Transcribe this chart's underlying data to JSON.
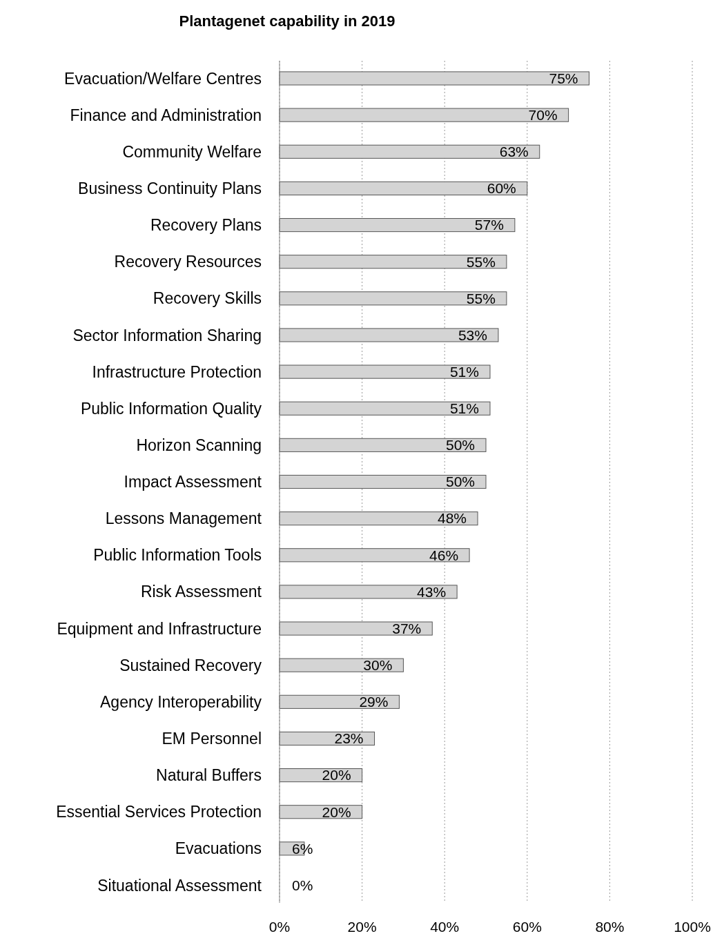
{
  "chart_data": {
    "type": "bar",
    "orientation": "horizontal",
    "title": "Plantagenet capability in 2019",
    "categories": [
      "Evacuation/Welfare Centres",
      "Finance and Administration",
      "Community Welfare",
      "Business Continuity Plans",
      "Recovery Plans",
      "Recovery Resources",
      "Recovery Skills",
      "Sector Information Sharing",
      "Infrastructure Protection",
      "Public Information Quality",
      "Horizon Scanning",
      "Impact Assessment",
      "Lessons Management",
      "Public Information Tools",
      "Risk Assessment",
      "Equipment and Infrastructure",
      "Sustained Recovery",
      "Agency Interoperability",
      "EM Personnel",
      "Natural Buffers",
      "Essential Services Protection",
      "Evacuations",
      "Situational Assessment"
    ],
    "values": [
      75,
      70,
      63,
      60,
      57,
      55,
      55,
      53,
      51,
      51,
      50,
      50,
      48,
      46,
      43,
      37,
      30,
      29,
      23,
      20,
      20,
      6,
      0
    ],
    "value_labels": [
      "75%",
      "70%",
      "63%",
      "60%",
      "57%",
      "55%",
      "55%",
      "53%",
      "51%",
      "51%",
      "50%",
      "50%",
      "48%",
      "46%",
      "43%",
      "37%",
      "30%",
      "29%",
      "23%",
      "20%",
      "20%",
      "6%",
      "0%"
    ],
    "color": "#d4d4d4",
    "xlim": [
      0,
      100
    ],
    "xticks": [
      {
        "value": 0,
        "label": "0%"
      },
      {
        "value": 20,
        "label": "20%"
      },
      {
        "value": 40,
        "label": "40%"
      },
      {
        "value": 60,
        "label": "60%"
      },
      {
        "value": 80,
        "label": "80%"
      },
      {
        "value": 100,
        "label": "100%"
      }
    ],
    "grid": "x"
  }
}
